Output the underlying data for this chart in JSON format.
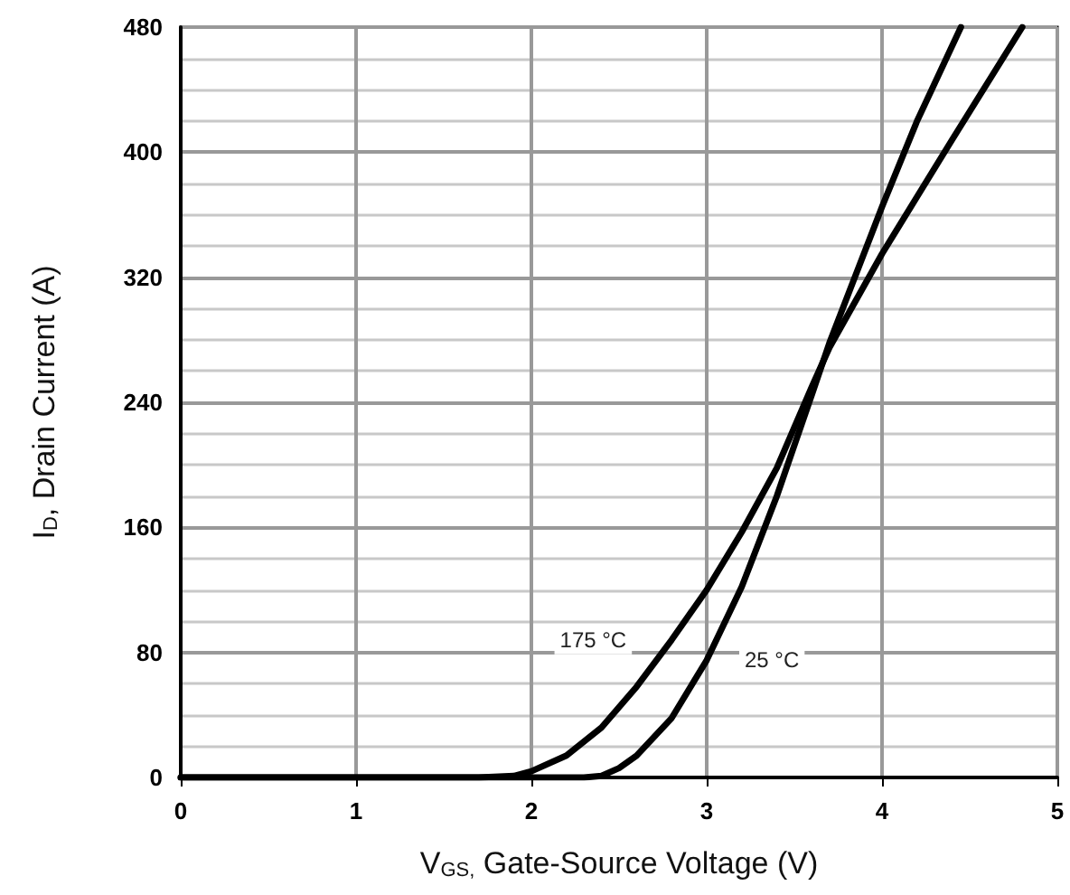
{
  "chart_data": {
    "type": "line",
    "xlabel": "V$_{GS,}$ Gate-Source Voltage (V)",
    "ylabel": "I$_{D}$, Drain Current (A)",
    "xlim": [
      0,
      5
    ],
    "xticks": [
      0,
      1,
      2,
      3,
      4,
      5
    ],
    "ylim": [
      0,
      480
    ],
    "yticks": [
      0,
      80,
      160,
      240,
      320,
      400,
      480
    ],
    "grid": true,
    "marker": "none",
    "line_style": "solid",
    "series": [
      {
        "name": "175 °C",
        "color": "#000000",
        "x": [
          0,
          1.7,
          1.9,
          2.0,
          2.2,
          2.4,
          2.6,
          2.8,
          3.0,
          3.2,
          3.4,
          3.6,
          3.7,
          4.0,
          4.4,
          4.8
        ],
        "values": [
          0,
          0,
          1,
          4,
          14,
          32,
          58,
          88,
          120,
          157,
          198,
          250,
          275,
          335,
          408,
          480
        ]
      },
      {
        "name": "25 °C",
        "color": "#000000",
        "x": [
          0,
          2.3,
          2.4,
          2.5,
          2.6,
          2.8,
          3.0,
          3.2,
          3.4,
          3.6,
          3.7,
          4.0,
          4.2,
          4.45
        ],
        "values": [
          0,
          0,
          1,
          6,
          14,
          38,
          75,
          122,
          180,
          245,
          278,
          365,
          420,
          480
        ]
      }
    ]
  }
}
